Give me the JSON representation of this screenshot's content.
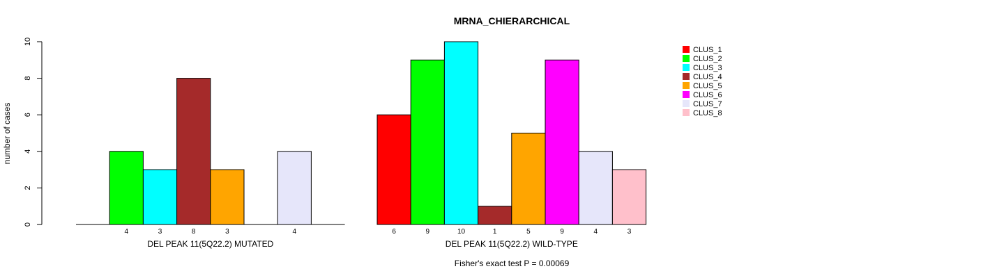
{
  "chart_data": {
    "type": "bar",
    "title": "MRNA_CHIERARCHICAL",
    "ylabel": "number of cases",
    "ylim": [
      0,
      10
    ],
    "yticks": [
      0,
      2,
      4,
      6,
      8,
      10
    ],
    "footer": "Fisher's exact test P = 0.00069",
    "clusters": [
      {
        "name": "CLUS_1",
        "color": "#ff0000"
      },
      {
        "name": "CLUS_2",
        "color": "#00ff00"
      },
      {
        "name": "CLUS_3",
        "color": "#00ffff"
      },
      {
        "name": "CLUS_4",
        "color": "#a52a2a"
      },
      {
        "name": "CLUS_5",
        "color": "#ffa500"
      },
      {
        "name": "CLUS_6",
        "color": "#ff00ff"
      },
      {
        "name": "CLUS_7",
        "color": "#e6e6fa"
      },
      {
        "name": "CLUS_8",
        "color": "#ffc0cb"
      }
    ],
    "panels": [
      {
        "xlabel": "DEL PEAK 11(5Q22.2) MUTATED",
        "values": [
          0,
          4,
          3,
          8,
          3,
          0,
          4,
          0
        ]
      },
      {
        "xlabel": "DEL PEAK 11(5Q22.2) WILD-TYPE",
        "values": [
          6,
          9,
          10,
          1,
          5,
          9,
          4,
          3
        ]
      }
    ]
  }
}
